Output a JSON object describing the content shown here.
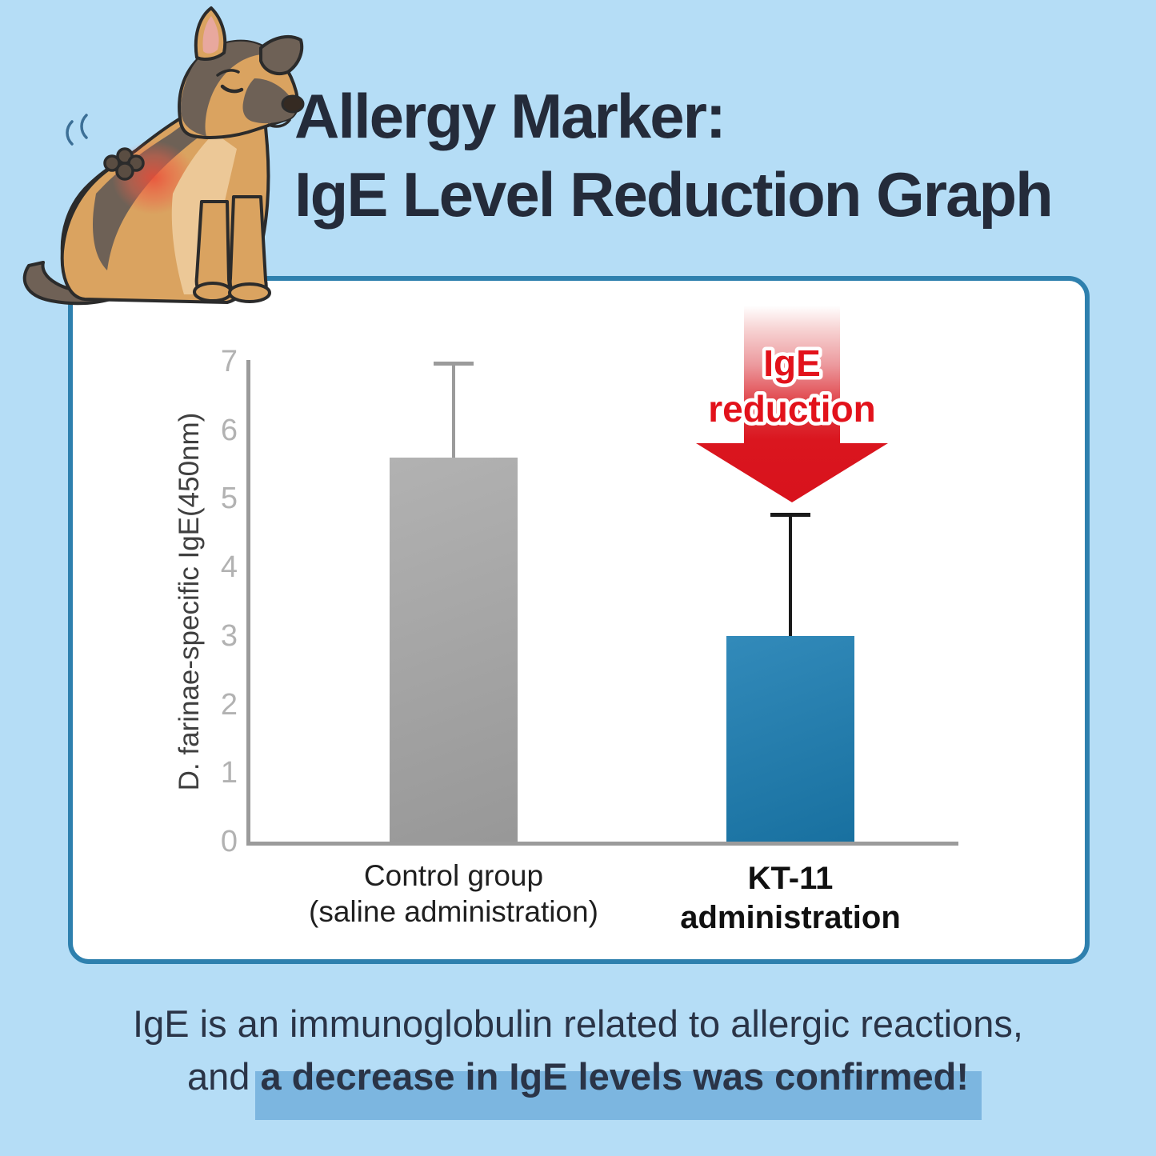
{
  "title": {
    "line1": "Allergy Marker:",
    "line2": "IgE Level Reduction Graph"
  },
  "annotation": {
    "line1": "IgE",
    "line2": "reduction"
  },
  "chart_data": {
    "type": "bar",
    "categories": [
      "Control group (saline administration)",
      "KT-11 administration"
    ],
    "category_lines": [
      [
        "Control group",
        "(saline administration)"
      ],
      [
        "KT-11",
        "administration"
      ]
    ],
    "values": [
      5.6,
      3.0
    ],
    "error_caps": [
      7.0,
      4.8
    ],
    "ylabel": "D. farinae-specific IgE(450nm)",
    "xlabel": "",
    "ylim": [
      0,
      7
    ],
    "yticks": [
      0,
      1,
      2,
      3,
      4,
      5,
      6,
      7
    ],
    "bar_colors": [
      "#a9a9a9",
      "#1b7db2"
    ],
    "error_colors": [
      "#9b9b9b",
      "#1a1a1a"
    ],
    "grid": false,
    "legend": "none",
    "annotation": "IgE reduction (red arrow over KT-11 bar)"
  },
  "footer": {
    "line1": "IgE is an immunoglobulin related to allergic reactions,",
    "line2_prefix": "and ",
    "line2_highlight": "a decrease in IgE levels was confirmed!"
  },
  "colors": {
    "background": "#b5ddf6",
    "card_border": "#2e80ae",
    "title_text": "#242b3a",
    "axis_gray": "#9b9b9b",
    "tick_gray": "#b2b2b2",
    "arrow_red": "#da1420",
    "arrow_text_red": "#e2121b",
    "highlight_blue": "#7cb6e0"
  }
}
